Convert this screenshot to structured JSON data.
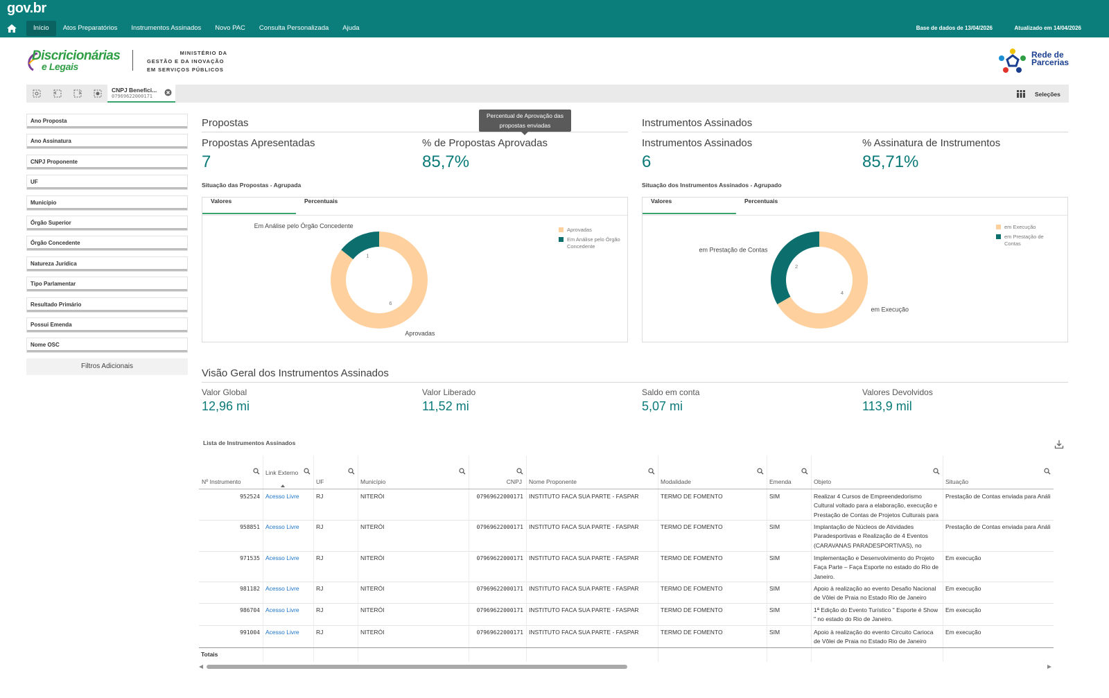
{
  "header": {
    "logo": "gov.br",
    "nav": [
      "Início",
      "Atos Preparatórios",
      "Instrumentos Assinados",
      "Novo PAC",
      "Consulta Personalizada",
      "Ajuda"
    ],
    "database_date": "Base de dados de 13/04/2026",
    "updated_date": "Atualizado em 14/04/2026"
  },
  "brand": {
    "app_name": [
      "Discricionárias",
      "e Legais"
    ],
    "ministry": [
      "MINISTÉRIO DA",
      "GESTÃO E DA INOVAÇÃO",
      "EM SERVIÇOS PÚBLICOS"
    ],
    "partner": [
      "Rede de",
      "Parcerias"
    ]
  },
  "toolbar": {
    "selection": {
      "field": "CNPJ Benefici...",
      "value": "07969622000171"
    },
    "selections_button": "Seleções"
  },
  "filters": {
    "items": [
      "Ano Proposta",
      "Ano Assinatura",
      "CNPJ Proponente",
      "UF",
      "Município",
      "Órgão Superior",
      "Órgão Concedente",
      "Natureza Jurídica",
      "Tipo Parlamentar",
      "Resultado Primário",
      "Possui Emenda",
      "Nome OSC"
    ],
    "more": "Filtros Adicionais"
  },
  "tooltip": "Percentual de Aprovação das propostas enviadas",
  "sections": [
    {
      "title": "Propostas",
      "kpis": [
        {
          "label": "Propostas Apresentadas",
          "value": "7"
        },
        {
          "label": "% de Propostas Aprovadas",
          "value": "85,7%"
        }
      ],
      "tabs": [
        "Valores",
        "Percentuais"
      ]
    },
    {
      "title": "Instrumentos Assinados",
      "kpis": [
        {
          "label": "Instrumentos Assinados",
          "value": "6"
        },
        {
          "label": "% Assinatura de Instrumentos",
          "value": "85,71%"
        }
      ],
      "tabs": [
        "Valores",
        "Percentuais"
      ]
    }
  ],
  "chart_data": [
    {
      "type": "pie",
      "donut": true,
      "title": "Situação das Propostas - Agrupada",
      "categories": [
        "Aprovadas",
        "Em Análise pelo Órgão Concedente"
      ],
      "values": [
        6,
        1
      ],
      "colors": [
        "#fdd09e",
        "#0d6e6e"
      ]
    },
    {
      "type": "pie",
      "donut": true,
      "title": "Situação dos Instrumentos Assinados - Agrupado",
      "categories": [
        "em Execução",
        "em Prestação de Contas"
      ],
      "values": [
        4,
        2
      ],
      "colors": [
        "#fdd09e",
        "#0d6e6e"
      ]
    }
  ],
  "overview": {
    "title": "Visão Geral dos Instrumentos Assinados",
    "kpis": [
      {
        "label": "Valor Global",
        "value": "12,96 mi"
      },
      {
        "label": "Valor Liberado",
        "value": "11,52 mi"
      },
      {
        "label": "Saldo em conta",
        "value": "5,07 mi"
      },
      {
        "label": "Valores Devolvidos",
        "value": "113,9 mil"
      }
    ]
  },
  "table": {
    "title": "Lista de Instrumentos Assinados",
    "columns": [
      "Nº Instrumento",
      "Link Externo",
      "UF",
      "Município",
      "CNPJ",
      "Nome Proponente",
      "Modalidade",
      "Emenda",
      "Objeto",
      "Situação"
    ],
    "rows": [
      [
        "952524",
        "Acesso Livre",
        "RJ",
        "NITERÓI",
        "07969622000171",
        "INSTITUTO FACA SUA PARTE - FASPAR",
        "TERMO DE FOMENTO",
        "SIM",
        "Realizar 4 Cursos de Empreendedorismo Cultural voltado para a elaboração, execução e Prestação de Contas de Projetos Culturais para",
        "Prestação de Contas enviada para Análise"
      ],
      [
        "958851",
        "Acesso Livre",
        "RJ",
        "NITERÓI",
        "07969622000171",
        "INSTITUTO FACA SUA PARTE - FASPAR",
        "TERMO DE FOMENTO",
        "SIM",
        "Implantação de Núcleos de Atividades Paradesportivas e Realização de 4 Eventos (CARAVANAS PARADESPORTIVAS), no estado",
        "Prestação de Contas enviada para Análise"
      ],
      [
        "971535",
        "Acesso Livre",
        "RJ",
        "NITERÓI",
        "07969622000171",
        "INSTITUTO FACA SUA PARTE - FASPAR",
        "TERMO DE FOMENTO",
        "SIM",
        "Implementação e Desenvolvimento do Projeto Faça Parte – Faça Esporte no estado do Rio de Janeiro.",
        "Em execução"
      ],
      [
        "981182",
        "Acesso Livre",
        "RJ",
        "NITERÓI",
        "07969622000171",
        "INSTITUTO FACA SUA PARTE - FASPAR",
        "TERMO DE FOMENTO",
        "SIM",
        "Apoio à realização ao evento Desafio Nacional de Vôlei de Praia no Estado Rio de Janeiro",
        "Em execução"
      ],
      [
        "986704",
        "Acesso Livre",
        "RJ",
        "NITERÓI",
        "07969622000171",
        "INSTITUTO FACA SUA PARTE - FASPAR",
        "TERMO DE FOMENTO",
        "SIM",
        "1ª Edição do Evento Turístico \" Esporte é Show \" no estado do Rio de Janeiro.",
        "Em execução"
      ],
      [
        "991004",
        "Acesso Livre",
        "RJ",
        "NITERÓI",
        "07969622000171",
        "INSTITUTO FACA SUA PARTE - FASPAR",
        "TERMO DE FOMENTO",
        "SIM",
        "Apoio à realização do evento Circuito Carioca de Vôlei de Praia no Estado Rio de Janeiro",
        "Em execução"
      ]
    ],
    "totals_label": "Totais"
  }
}
